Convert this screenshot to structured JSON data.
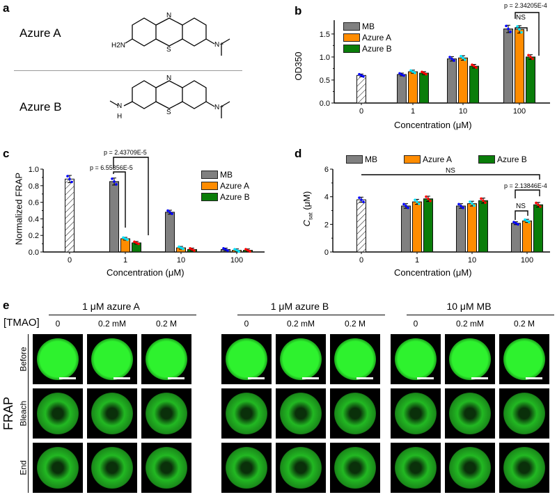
{
  "panel_labels": [
    "a",
    "b",
    "c",
    "d",
    "e"
  ],
  "panel_a": {
    "compounds": [
      "Azure A",
      "Azure B"
    ],
    "atom_labels": {
      "n": "N",
      "s": "S",
      "h2n": "H2N",
      "nplus": "N+",
      "nh": "N",
      "h": "H"
    }
  },
  "legend": [
    "MB",
    "Azure A",
    "Azure B"
  ],
  "colors": {
    "MB": "#808080",
    "Azure A": "#ff8c00",
    "Azure B": "#0a7d0a",
    "control": "#ffffff",
    "dots": [
      "#0000ff",
      "#00e5ff",
      "#ff0000"
    ]
  },
  "chart_data": [
    {
      "id": "b",
      "type": "bar",
      "ylabel": "OD350",
      "xlabel": "Concentration (μM)",
      "categories": [
        "0",
        "1",
        "10",
        "100"
      ],
      "ylim": [
        0,
        1.8
      ],
      "yticks": [
        "0.0",
        "0.5",
        "1.0",
        "1.5"
      ],
      "control": 0.6,
      "series": [
        {
          "name": "MB",
          "values": [
            null,
            0.62,
            0.96,
            1.61
          ]
        },
        {
          "name": "Azure A",
          "values": [
            null,
            0.68,
            0.98,
            1.6
          ]
        },
        {
          "name": "Azure B",
          "values": [
            null,
            0.65,
            0.8,
            1.0
          ]
        }
      ],
      "annotations": [
        "p = 2.34205E-4",
        "NS"
      ],
      "legend_position": "top-left"
    },
    {
      "id": "c",
      "type": "bar",
      "ylabel": "Normalized FRAP",
      "xlabel": "Concentration (μM)",
      "categories": [
        "0",
        "1",
        "10",
        "100"
      ],
      "ylim": [
        0,
        1.0
      ],
      "yticks": [
        "0.0",
        "0.2",
        "0.4",
        "0.6",
        "0.8",
        "1.0"
      ],
      "control": 0.88,
      "series": [
        {
          "name": "MB",
          "values": [
            null,
            0.85,
            0.48,
            0.03
          ]
        },
        {
          "name": "Azure A",
          "values": [
            null,
            0.16,
            0.05,
            0.02
          ]
        },
        {
          "name": "Azure B",
          "values": [
            null,
            0.11,
            0.03,
            0.02
          ]
        }
      ],
      "annotations": [
        "p = 2.43709E-5",
        "p = 6.55356E-5"
      ],
      "legend_position": "top-right"
    },
    {
      "id": "d",
      "type": "bar",
      "ylabel": "C",
      "ylabel_sub": "sat",
      "ylabel_unit": "(μM)",
      "xlabel": "Concentration (μM)",
      "categories": [
        "0",
        "1",
        "10",
        "100"
      ],
      "ylim": [
        0,
        6
      ],
      "yticks": [
        "0",
        "2",
        "4",
        "6"
      ],
      "control": 3.78,
      "series": [
        {
          "name": "MB",
          "values": [
            null,
            3.33,
            3.33,
            2.08
          ]
        },
        {
          "name": "Azure A",
          "values": [
            null,
            3.63,
            3.5,
            2.25
          ]
        },
        {
          "name": "Azure B",
          "values": [
            null,
            3.85,
            3.72,
            3.42
          ]
        }
      ],
      "annotations": [
        "NS",
        "p = 2.13846E-4",
        "NS"
      ],
      "legend_position": "top"
    }
  ],
  "panel_e": {
    "groups": [
      "1 μM azure A",
      "1 μM azure B",
      "10 μM MB"
    ],
    "condition_label": "[TMAO]",
    "conditions": [
      "0",
      "0.2 mM",
      "0.2 M"
    ],
    "rows": [
      "Before",
      "Bleach",
      "End"
    ],
    "side_label": "FRAP"
  }
}
